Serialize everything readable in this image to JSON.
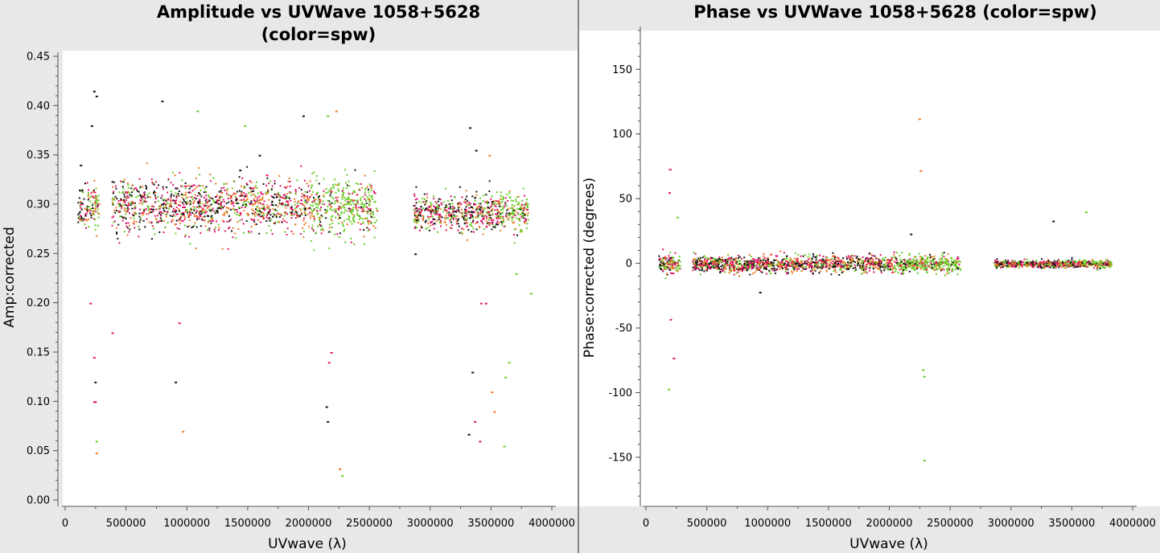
{
  "chart_data": [
    {
      "type": "scatter",
      "title": [
        "Amplitude vs UVWave 1058+5628",
        "(color=spw)"
      ],
      "xlabel": "UVwave (λ)",
      "ylabel": "Amp:corrected",
      "xlim": [
        0,
        4000000
      ],
      "ylim": [
        0,
        0.45
      ],
      "xticks": [
        0,
        500000,
        1000000,
        1500000,
        2000000,
        2500000,
        3000000,
        3500000,
        4000000
      ],
      "xtick_labels": [
        "0",
        "500000",
        "1000000",
        "1500000",
        "2000000",
        "2500000",
        "3000000",
        "3500000",
        "4000000"
      ],
      "yticks": [
        0,
        0.05,
        0.1,
        0.15,
        0.2,
        0.25,
        0.3,
        0.35,
        0.4,
        0.45
      ],
      "ytick_labels": [
        "0.00",
        "0.05",
        "0.10",
        "0.15",
        "0.20",
        "0.25",
        "0.30",
        "0.35",
        "0.40",
        "0.45"
      ],
      "grid": false,
      "colors": [
        "#111111",
        "#e0146a",
        "#f07820",
        "#66cc22"
      ],
      "series": [
        {
          "color": "#111111",
          "x": [
            120000,
            230000,
            250000,
            210000,
            790000,
            1430000,
            1590000,
            1950000,
            2140000,
            3320000,
            3370000,
            3340000,
            2870000,
            3310000,
            240000,
            900000,
            2150000
          ],
          "y": [
            0.34,
            0.415,
            0.41,
            0.38,
            0.405,
            0.335,
            0.35,
            0.39,
            0.095,
            0.378,
            0.355,
            0.13,
            0.25,
            0.067,
            0.12,
            0.12,
            0.08
          ]
        },
        {
          "color": "#e0146a",
          "x": [
            230000,
            240000,
            380000,
            1050000,
            1650000,
            2160000,
            3360000,
            3400000,
            3410000,
            200000,
            230000,
            930000,
            2180000,
            3450000
          ],
          "y": [
            0.145,
            0.1,
            0.17,
            0.32,
            0.33,
            0.14,
            0.08,
            0.06,
            0.2,
            0.2,
            0.1,
            0.18,
            0.15,
            0.2
          ],
          "name": ""
        },
        {
          "color": "#f07820",
          "x": [
            2220000,
            3480000,
            960000,
            250000,
            2250000,
            3500000,
            3520000
          ],
          "y": [
            0.395,
            0.35,
            0.07,
            0.048,
            0.032,
            0.11,
            0.09
          ]
        },
        {
          "color": "#66cc22",
          "x": [
            1080000,
            1470000,
            2150000,
            3640000,
            3700000,
            3600000,
            2270000,
            250000,
            3610000,
            3820000
          ],
          "y": [
            0.395,
            0.38,
            0.39,
            0.14,
            0.23,
            0.055,
            0.025,
            0.06,
            0.125,
            0.21
          ]
        }
      ],
      "clusters": [
        {
          "x": [
            100000,
            280000
          ],
          "y_center": 0.298,
          "y_spread": 0.025,
          "colors": [
            0,
            1,
            2,
            3
          ]
        },
        {
          "x": [
            380000,
            2560000
          ],
          "y_center": 0.298,
          "y_spread": 0.028,
          "colors": [
            0,
            1,
            2,
            3
          ]
        },
        {
          "x": [
            2860000,
            3800000
          ],
          "y_center": 0.292,
          "y_spread": 0.02,
          "colors": [
            0,
            1,
            2,
            3
          ]
        }
      ]
    },
    {
      "type": "scatter",
      "title": [
        "Phase vs UVWave 1058+5628 (color=spw)"
      ],
      "xlabel": "UVwave (λ)",
      "ylabel": "Phase:corrected (degrees)",
      "xlim": [
        0,
        4000000
      ],
      "ylim": [
        -183,
        180
      ],
      "xticks": [
        0,
        500000,
        1000000,
        1500000,
        2000000,
        2500000,
        3000000,
        3500000,
        4000000
      ],
      "xtick_labels": [
        "0",
        "500000",
        "1000000",
        "1500000",
        "2000000",
        "2500000",
        "3000000",
        "3500000",
        "4000000"
      ],
      "yticks": [
        -150,
        -100,
        -50,
        0,
        50,
        100,
        150
      ],
      "ytick_labels": [
        "-150",
        "-100",
        "-50",
        "0",
        "50",
        "100",
        "150"
      ],
      "grid": false,
      "colors": [
        "#111111",
        "#e0146a",
        "#f07820",
        "#66cc22"
      ],
      "series": [
        {
          "color": "#e0146a",
          "x": [
            190000,
            185000,
            195000,
            220000
          ],
          "y": [
            73,
            55,
            -43,
            -73
          ]
        },
        {
          "color": "#f07820",
          "x": [
            2240000,
            2250000
          ],
          "y": [
            112,
            72
          ]
        },
        {
          "color": "#66cc22",
          "x": [
            180000,
            250000,
            2270000,
            2280000,
            2280000,
            3610000
          ],
          "y": [
            -97,
            36,
            -82,
            -87,
            -152,
            40
          ]
        },
        {
          "color": "#111111",
          "x": [
            3340000,
            2170000,
            930000
          ],
          "y": [
            33,
            23,
            -22
          ]
        }
      ],
      "clusters": [
        {
          "x": [
            100000,
            280000
          ],
          "y_center": 0,
          "y_spread": 8,
          "colors": [
            0,
            1,
            2,
            3
          ]
        },
        {
          "x": [
            380000,
            2580000
          ],
          "y_center": 0,
          "y_spread": 7,
          "colors": [
            0,
            1,
            2,
            3
          ]
        },
        {
          "x": [
            2860000,
            3820000
          ],
          "y_center": 0,
          "y_spread": 3,
          "colors": [
            0,
            1,
            2,
            3
          ]
        }
      ]
    }
  ]
}
